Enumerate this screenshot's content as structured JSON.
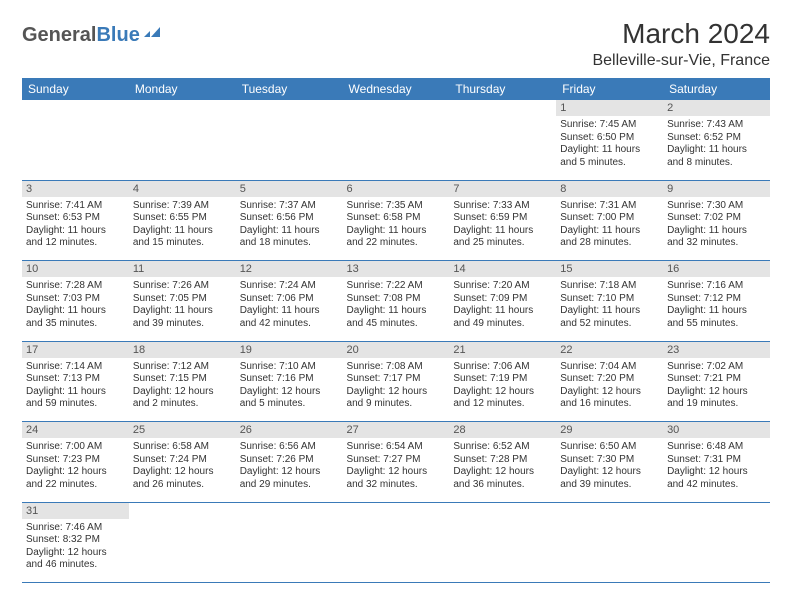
{
  "logo": {
    "part1": "General",
    "part2": "Blue"
  },
  "title": "March 2024",
  "location": "Belleville-sur-Vie, France",
  "colors": {
    "header_bg": "#3a7ab8",
    "header_text": "#ffffff",
    "daynum_bg": "#e4e4e4",
    "border": "#3a7ab8",
    "logo_gray": "#555555",
    "logo_blue": "#3a7ab8"
  },
  "weekdays": [
    "Sunday",
    "Monday",
    "Tuesday",
    "Wednesday",
    "Thursday",
    "Friday",
    "Saturday"
  ],
  "weeks": [
    [
      null,
      null,
      null,
      null,
      null,
      {
        "n": "1",
        "sr": "7:45 AM",
        "ss": "6:50 PM",
        "dl": "11 hours and 5 minutes."
      },
      {
        "n": "2",
        "sr": "7:43 AM",
        "ss": "6:52 PM",
        "dl": "11 hours and 8 minutes."
      }
    ],
    [
      {
        "n": "3",
        "sr": "7:41 AM",
        "ss": "6:53 PM",
        "dl": "11 hours and 12 minutes."
      },
      {
        "n": "4",
        "sr": "7:39 AM",
        "ss": "6:55 PM",
        "dl": "11 hours and 15 minutes."
      },
      {
        "n": "5",
        "sr": "7:37 AM",
        "ss": "6:56 PM",
        "dl": "11 hours and 18 minutes."
      },
      {
        "n": "6",
        "sr": "7:35 AM",
        "ss": "6:58 PM",
        "dl": "11 hours and 22 minutes."
      },
      {
        "n": "7",
        "sr": "7:33 AM",
        "ss": "6:59 PM",
        "dl": "11 hours and 25 minutes."
      },
      {
        "n": "8",
        "sr": "7:31 AM",
        "ss": "7:00 PM",
        "dl": "11 hours and 28 minutes."
      },
      {
        "n": "9",
        "sr": "7:30 AM",
        "ss": "7:02 PM",
        "dl": "11 hours and 32 minutes."
      }
    ],
    [
      {
        "n": "10",
        "sr": "7:28 AM",
        "ss": "7:03 PM",
        "dl": "11 hours and 35 minutes."
      },
      {
        "n": "11",
        "sr": "7:26 AM",
        "ss": "7:05 PM",
        "dl": "11 hours and 39 minutes."
      },
      {
        "n": "12",
        "sr": "7:24 AM",
        "ss": "7:06 PM",
        "dl": "11 hours and 42 minutes."
      },
      {
        "n": "13",
        "sr": "7:22 AM",
        "ss": "7:08 PM",
        "dl": "11 hours and 45 minutes."
      },
      {
        "n": "14",
        "sr": "7:20 AM",
        "ss": "7:09 PM",
        "dl": "11 hours and 49 minutes."
      },
      {
        "n": "15",
        "sr": "7:18 AM",
        "ss": "7:10 PM",
        "dl": "11 hours and 52 minutes."
      },
      {
        "n": "16",
        "sr": "7:16 AM",
        "ss": "7:12 PM",
        "dl": "11 hours and 55 minutes."
      }
    ],
    [
      {
        "n": "17",
        "sr": "7:14 AM",
        "ss": "7:13 PM",
        "dl": "11 hours and 59 minutes."
      },
      {
        "n": "18",
        "sr": "7:12 AM",
        "ss": "7:15 PM",
        "dl": "12 hours and 2 minutes."
      },
      {
        "n": "19",
        "sr": "7:10 AM",
        "ss": "7:16 PM",
        "dl": "12 hours and 5 minutes."
      },
      {
        "n": "20",
        "sr": "7:08 AM",
        "ss": "7:17 PM",
        "dl": "12 hours and 9 minutes."
      },
      {
        "n": "21",
        "sr": "7:06 AM",
        "ss": "7:19 PM",
        "dl": "12 hours and 12 minutes."
      },
      {
        "n": "22",
        "sr": "7:04 AM",
        "ss": "7:20 PM",
        "dl": "12 hours and 16 minutes."
      },
      {
        "n": "23",
        "sr": "7:02 AM",
        "ss": "7:21 PM",
        "dl": "12 hours and 19 minutes."
      }
    ],
    [
      {
        "n": "24",
        "sr": "7:00 AM",
        "ss": "7:23 PM",
        "dl": "12 hours and 22 minutes."
      },
      {
        "n": "25",
        "sr": "6:58 AM",
        "ss": "7:24 PM",
        "dl": "12 hours and 26 minutes."
      },
      {
        "n": "26",
        "sr": "6:56 AM",
        "ss": "7:26 PM",
        "dl": "12 hours and 29 minutes."
      },
      {
        "n": "27",
        "sr": "6:54 AM",
        "ss": "7:27 PM",
        "dl": "12 hours and 32 minutes."
      },
      {
        "n": "28",
        "sr": "6:52 AM",
        "ss": "7:28 PM",
        "dl": "12 hours and 36 minutes."
      },
      {
        "n": "29",
        "sr": "6:50 AM",
        "ss": "7:30 PM",
        "dl": "12 hours and 39 minutes."
      },
      {
        "n": "30",
        "sr": "6:48 AM",
        "ss": "7:31 PM",
        "dl": "12 hours and 42 minutes."
      }
    ],
    [
      {
        "n": "31",
        "sr": "7:46 AM",
        "ss": "8:32 PM",
        "dl": "12 hours and 46 minutes."
      },
      null,
      null,
      null,
      null,
      null,
      null
    ]
  ],
  "labels": {
    "sunrise": "Sunrise: ",
    "sunset": "Sunset: ",
    "daylight": "Daylight: "
  }
}
